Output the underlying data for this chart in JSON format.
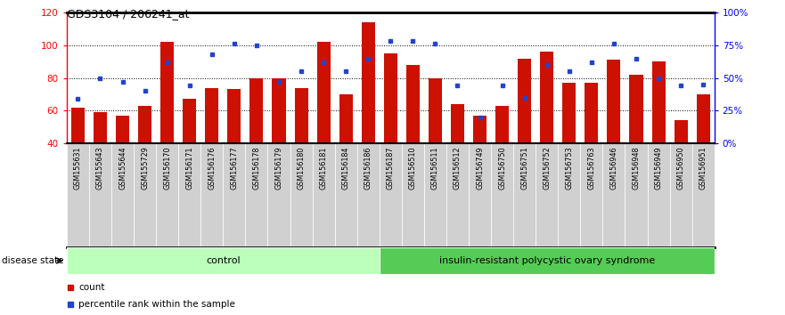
{
  "title": "GDS3104 / 206241_at",
  "samples": [
    "GSM155631",
    "GSM155643",
    "GSM155644",
    "GSM155729",
    "GSM156170",
    "GSM156171",
    "GSM156176",
    "GSM156177",
    "GSM156178",
    "GSM156179",
    "GSM156180",
    "GSM156181",
    "GSM156184",
    "GSM156186",
    "GSM156187",
    "GSM156510",
    "GSM156511",
    "GSM156512",
    "GSM156749",
    "GSM156750",
    "GSM156751",
    "GSM156752",
    "GSM156753",
    "GSM156763",
    "GSM156946",
    "GSM156948",
    "GSM156949",
    "GSM156950",
    "GSM156951"
  ],
  "counts": [
    62,
    59,
    57,
    63,
    102,
    67,
    74,
    73,
    80,
    80,
    74,
    102,
    70,
    114,
    95,
    88,
    80,
    64,
    57,
    63,
    92,
    96,
    77,
    77,
    91,
    82,
    90,
    54,
    70
  ],
  "percentile_ranks_pct": [
    34,
    50,
    47,
    40,
    62,
    44,
    68,
    76,
    75,
    47,
    55,
    62,
    55,
    65,
    78,
    78,
    76,
    44,
    20,
    44,
    35,
    60,
    55,
    62,
    76,
    65,
    50,
    44,
    45
  ],
  "control_count": 14,
  "control_label": "control",
  "disease_label": "insulin-resistant polycystic ovary syndrome",
  "disease_state_label": "disease state",
  "ylim_left": [
    40,
    120
  ],
  "ylim_right": [
    0,
    100
  ],
  "yticks_left": [
    40,
    60,
    80,
    100,
    120
  ],
  "ytick_labels_right": [
    "0%",
    "25%",
    "50%",
    "75%",
    "100%"
  ],
  "yticks_right": [
    0,
    25,
    50,
    75,
    100
  ],
  "bar_color": "#cc1100",
  "percentile_color": "#2244cc",
  "plot_bg": "#ffffff",
  "control_bg": "#bbffbb",
  "disease_bg": "#55cc55",
  "tick_bg": "#d0d0d0"
}
